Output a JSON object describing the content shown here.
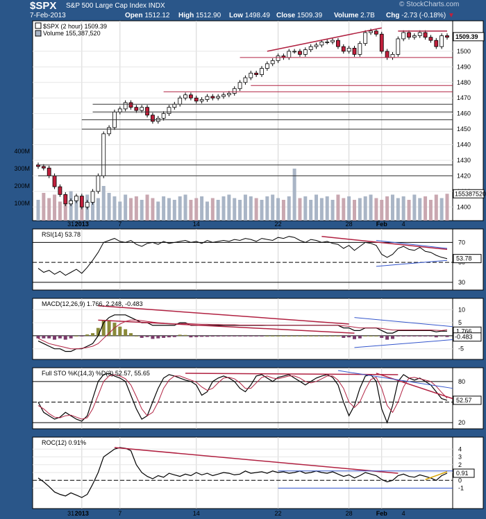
{
  "header": {
    "ticker": "$SPX",
    "name": "S&P 500 Large Cap Index",
    "exchange": "INDX",
    "date": "7-Feb-2013",
    "open_label": "Open",
    "open": "1512.12",
    "high_label": "High",
    "high": "1512.90",
    "low_label": "Low",
    "low": "1498.49",
    "close_label": "Close",
    "close": "1509.39",
    "volume_label": "Volume",
    "volume": "2.7B",
    "chg_label": "Chg",
    "chg": "-2.73 (-0.18%)",
    "watermark": "© StockCharts.com",
    "down_color": "#c0203c"
  },
  "chart_data": [
    {
      "type": "candlestick",
      "legend_main": "$SPX (2 hour) 1509.39",
      "legend_volume": "Volume 155,387,520",
      "ylim": [
        1393,
        1516
      ],
      "ticks": [
        1400,
        1410,
        1420,
        1430,
        1440,
        1450,
        1460,
        1470,
        1480,
        1490,
        1500
      ],
      "last_value_label": "1509.39",
      "volume_ticks": [
        "100M",
        "200M",
        "300M",
        "400M"
      ],
      "volume_last_label": "155387520",
      "volume_ylim": [
        0,
        400
      ],
      "volume_values_M": [
        120,
        160,
        130,
        150,
        110,
        140,
        170,
        130,
        120,
        150,
        140,
        130,
        200,
        160,
        140,
        110,
        150,
        130,
        140,
        120,
        150,
        130,
        110,
        140,
        130,
        120,
        140,
        150,
        120,
        130,
        140,
        110,
        130,
        120,
        140,
        150,
        130,
        120,
        150,
        140,
        130,
        120,
        140,
        150,
        130,
        120,
        140,
        300,
        130,
        140,
        120,
        150,
        130,
        140,
        120,
        150,
        130,
        140,
        120,
        130,
        140,
        150,
        130,
        120,
        140,
        150,
        130,
        140,
        120,
        150,
        130,
        140,
        120,
        150,
        130,
        155
      ],
      "x_ticks": [
        "31",
        "2013",
        "7",
        "14",
        "22",
        "28",
        "Feb",
        "4"
      ],
      "closes": [
        1426,
        1425,
        1420,
        1413,
        1408,
        1402,
        1404,
        1407,
        1400,
        1403,
        1410,
        1420,
        1447,
        1451,
        1461,
        1463,
        1467,
        1464,
        1462,
        1464,
        1459,
        1455,
        1457,
        1460,
        1464,
        1466,
        1470,
        1472,
        1470,
        1468,
        1469,
        1471,
        1470,
        1471,
        1472,
        1473,
        1476,
        1480,
        1483,
        1486,
        1485,
        1489,
        1492,
        1494,
        1497,
        1496,
        1500,
        1500,
        1498,
        1501,
        1503,
        1504,
        1506,
        1506,
        1507,
        1503,
        1500,
        1502,
        1498,
        1505,
        1512,
        1513,
        1511,
        1500,
        1496,
        1498,
        1508,
        1512,
        1509,
        1510,
        1512,
        1509,
        1507,
        1503,
        1510,
        1509
      ]
    },
    {
      "type": "line",
      "legend": "RSI(14) 53.78",
      "ylim": [
        25,
        80
      ],
      "ticks": [
        30,
        50,
        70
      ],
      "last_value_label": "53.78",
      "values": [
        44,
        40,
        42,
        38,
        41,
        37,
        40,
        43,
        39,
        45,
        52,
        60,
        70,
        72,
        74,
        71,
        70,
        72,
        68,
        66,
        69,
        70,
        68,
        71,
        69,
        70,
        71,
        72,
        70,
        71,
        69,
        72,
        70,
        71,
        72,
        71,
        73,
        72,
        74,
        73,
        71,
        74,
        73,
        72,
        75,
        74,
        76,
        75,
        72,
        70,
        73,
        72,
        70,
        71,
        69,
        68,
        64,
        67,
        62,
        66,
        70,
        69,
        67,
        58,
        55,
        58,
        64,
        66,
        63,
        62,
        65,
        61,
        60,
        57,
        55,
        53.78
      ]
    },
    {
      "type": "line",
      "legend": "MACD(12,26,9) 1.766, 2.248, -0.483",
      "ylim": [
        -8,
        13
      ],
      "ticks": [
        -5,
        0,
        5,
        10
      ],
      "last_value_labels": [
        "1.766",
        "-0.483"
      ],
      "macd": [
        -2,
        -3,
        -4,
        -5,
        -5,
        -6,
        -6,
        -5,
        -5,
        -4,
        -3,
        0,
        5,
        7,
        8,
        8,
        8,
        7,
        6,
        5,
        5,
        4,
        4,
        4,
        4,
        4,
        5,
        5,
        4,
        4,
        4,
        4,
        4,
        4,
        4,
        4,
        4,
        4,
        4,
        4,
        4,
        4,
        4,
        4,
        4,
        4,
        4,
        4,
        4,
        4,
        4,
        4,
        4,
        4,
        4,
        4,
        3,
        3,
        2,
        2,
        3,
        3,
        3,
        2,
        1,
        1,
        2,
        2,
        2,
        2,
        2,
        2,
        2,
        1.5,
        1.8,
        1.766
      ],
      "signal": [
        -1,
        -2,
        -3,
        -3.5,
        -4,
        -4.5,
        -5,
        -5,
        -4.8,
        -4.5,
        -4,
        -3,
        -1,
        1,
        3,
        4.5,
        5.5,
        6,
        6,
        5.8,
        5.5,
        5.2,
        5,
        4.8,
        4.6,
        4.5,
        4.6,
        4.7,
        4.6,
        4.5,
        4.4,
        4.4,
        4.3,
        4.3,
        4.2,
        4.2,
        4.2,
        4.1,
        4.1,
        4.1,
        4.1,
        4.1,
        4,
        4,
        4,
        4,
        4,
        4,
        4,
        4,
        4,
        4,
        4,
        4,
        4,
        4,
        3.8,
        3.6,
        3.3,
        3,
        3,
        3,
        3,
        2.8,
        2.5,
        2.2,
        2.2,
        2.2,
        2.2,
        2.2,
        2.2,
        2.2,
        2.2,
        2.1,
        2,
        2.248
      ]
    },
    {
      "type": "line",
      "legend": "Full STO %K(14,3) %D(3) 52.57, 55.65",
      "ylim": [
        15,
        95
      ],
      "ticks": [
        20,
        50,
        80
      ],
      "last_value_label": "52.57",
      "k": [
        50,
        35,
        30,
        25,
        28,
        35,
        30,
        25,
        22,
        30,
        55,
        80,
        90,
        92,
        88,
        85,
        80,
        60,
        40,
        25,
        30,
        50,
        70,
        85,
        90,
        88,
        85,
        82,
        80,
        75,
        60,
        65,
        80,
        85,
        88,
        85,
        80,
        70,
        65,
        75,
        88,
        90,
        85,
        80,
        86,
        88,
        90,
        85,
        80,
        75,
        80,
        85,
        88,
        90,
        86,
        75,
        50,
        30,
        45,
        70,
        88,
        90,
        80,
        40,
        20,
        45,
        80,
        90,
        85,
        82,
        85,
        80,
        75,
        65,
        55,
        52.57
      ],
      "d": [
        45,
        40,
        33,
        28,
        27,
        30,
        31,
        28,
        25,
        27,
        40,
        60,
        80,
        88,
        90,
        88,
        84,
        75,
        58,
        40,
        30,
        35,
        50,
        70,
        82,
        88,
        88,
        85,
        82,
        79,
        72,
        67,
        70,
        78,
        85,
        86,
        84,
        78,
        70,
        70,
        78,
        86,
        88,
        85,
        84,
        86,
        88,
        88,
        85,
        80,
        78,
        80,
        84,
        88,
        88,
        82,
        70,
        50,
        42,
        50,
        68,
        83,
        86,
        70,
        45,
        35,
        50,
        72,
        85,
        86,
        84,
        82,
        80,
        73,
        64,
        55.65
      ]
    },
    {
      "type": "line",
      "legend": "ROC(12) 0.91%",
      "ylim": [
        -3,
        5
      ],
      "ticks": [
        -1,
        0,
        1,
        2,
        3,
        4
      ],
      "last_value_label": "0.91",
      "values": [
        0.3,
        -0.2,
        -0.8,
        -1.5,
        -1.8,
        -2,
        -1.6,
        -1.9,
        -2.2,
        -1.8,
        -0.5,
        1,
        3,
        3.5,
        4,
        4.2,
        4.1,
        3.8,
        2,
        1,
        0.5,
        0.2,
        0.6,
        0.4,
        0.9,
        0.7,
        0.5,
        0.8,
        0.6,
        1,
        0.7,
        0.9,
        0.6,
        0.8,
        1,
        0.9,
        0.7,
        0.8,
        1.2,
        0.9,
        1,
        1.1,
        0.9,
        1.2,
        1,
        1.1,
        0.9,
        1,
        1.2,
        0.9,
        1,
        1.2,
        1,
        0.9,
        1.1,
        0.8,
        0.5,
        0.7,
        0.3,
        0.6,
        1,
        0.8,
        0.6,
        0.1,
        -0.2,
        0,
        0.6,
        0.8,
        0.5,
        0.4,
        0.7,
        0.5,
        0.3,
        0,
        0.6,
        0.91
      ]
    }
  ]
}
